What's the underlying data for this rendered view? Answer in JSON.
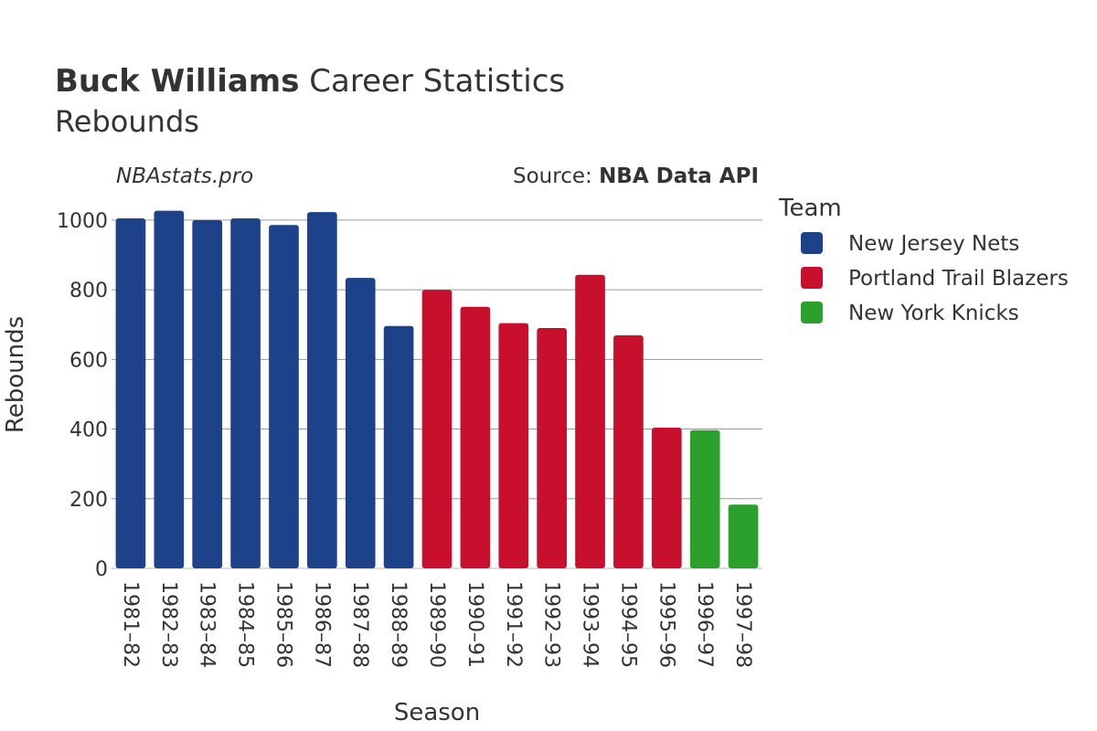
{
  "header": {
    "title_bold": "Buck Williams",
    "title_rest": "Career Statistics",
    "subtitle": "Rebounds",
    "credit": "NBAstats.pro",
    "source_prefix": "Source: ",
    "source_bold": "NBA Data API"
  },
  "legend": {
    "title": "Team",
    "items": [
      {
        "label": "New Jersey Nets",
        "color": "#1d428a"
      },
      {
        "label": "Portland Trail Blazers",
        "color": "#c8102e"
      },
      {
        "label": "New York Knicks",
        "color": "#2ca02c"
      }
    ]
  },
  "chart_data": {
    "type": "bar",
    "title": "Buck Williams Career Statistics",
    "subtitle": "Rebounds",
    "xlabel": "Season",
    "ylabel": "Rebounds",
    "ylim": [
      0,
      1060
    ],
    "yticks": [
      0,
      200,
      400,
      600,
      800,
      1000
    ],
    "grid": true,
    "legend_position": "right",
    "categories": [
      "1981–82",
      "1982–83",
      "1983–84",
      "1984–85",
      "1985–86",
      "1986–87",
      "1987–88",
      "1988–89",
      "1989–90",
      "1990–91",
      "1991–92",
      "1992–93",
      "1993–94",
      "1994–95",
      "1995–96",
      "1996–97",
      "1997–98"
    ],
    "values": [
      1005,
      1027,
      1000,
      1005,
      986,
      1023,
      834,
      696,
      800,
      751,
      704,
      690,
      843,
      669,
      404,
      397,
      183
    ],
    "teams": [
      "New Jersey Nets",
      "New Jersey Nets",
      "New Jersey Nets",
      "New Jersey Nets",
      "New Jersey Nets",
      "New Jersey Nets",
      "New Jersey Nets",
      "New Jersey Nets",
      "Portland Trail Blazers",
      "Portland Trail Blazers",
      "Portland Trail Blazers",
      "Portland Trail Blazers",
      "Portland Trail Blazers",
      "Portland Trail Blazers",
      "Portland Trail Blazers",
      "New York Knicks",
      "New York Knicks"
    ]
  }
}
